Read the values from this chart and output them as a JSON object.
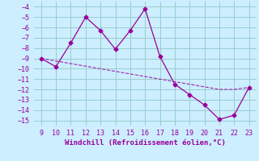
{
  "x": [
    9,
    10,
    11,
    12,
    13,
    14,
    15,
    16,
    17,
    18,
    19,
    20,
    21,
    22,
    23
  ],
  "y_main": [
    -9,
    -9.8,
    -7.5,
    -5.0,
    -6.3,
    -8.1,
    -6.3,
    -4.2,
    -8.8,
    -11.5,
    -12.5,
    -13.5,
    -14.9,
    -14.5,
    -11.8
  ],
  "y_dash": [
    -9.0,
    -9.25,
    -9.5,
    -9.75,
    -10.0,
    -10.25,
    -10.5,
    -10.75,
    -11.0,
    -11.25,
    -11.5,
    -11.75,
    -12.0,
    -12.0,
    -11.8
  ],
  "line_color": "#990099",
  "bg_color": "#cceeff",
  "grid_color": "#99cccc",
  "xlabel": "Windchill (Refroidissement éolien,°C)",
  "ylim": [
    -15.5,
    -3.5
  ],
  "xlim": [
    8.5,
    23.5
  ],
  "yticks": [
    -15,
    -14,
    -13,
    -12,
    -11,
    -10,
    -9,
    -8,
    -7,
    -6,
    -5,
    -4
  ],
  "xticks": [
    9,
    10,
    11,
    12,
    13,
    14,
    15,
    16,
    17,
    18,
    19,
    20,
    21,
    22,
    23
  ],
  "tick_fontsize": 6,
  "xlabel_fontsize": 6.5
}
